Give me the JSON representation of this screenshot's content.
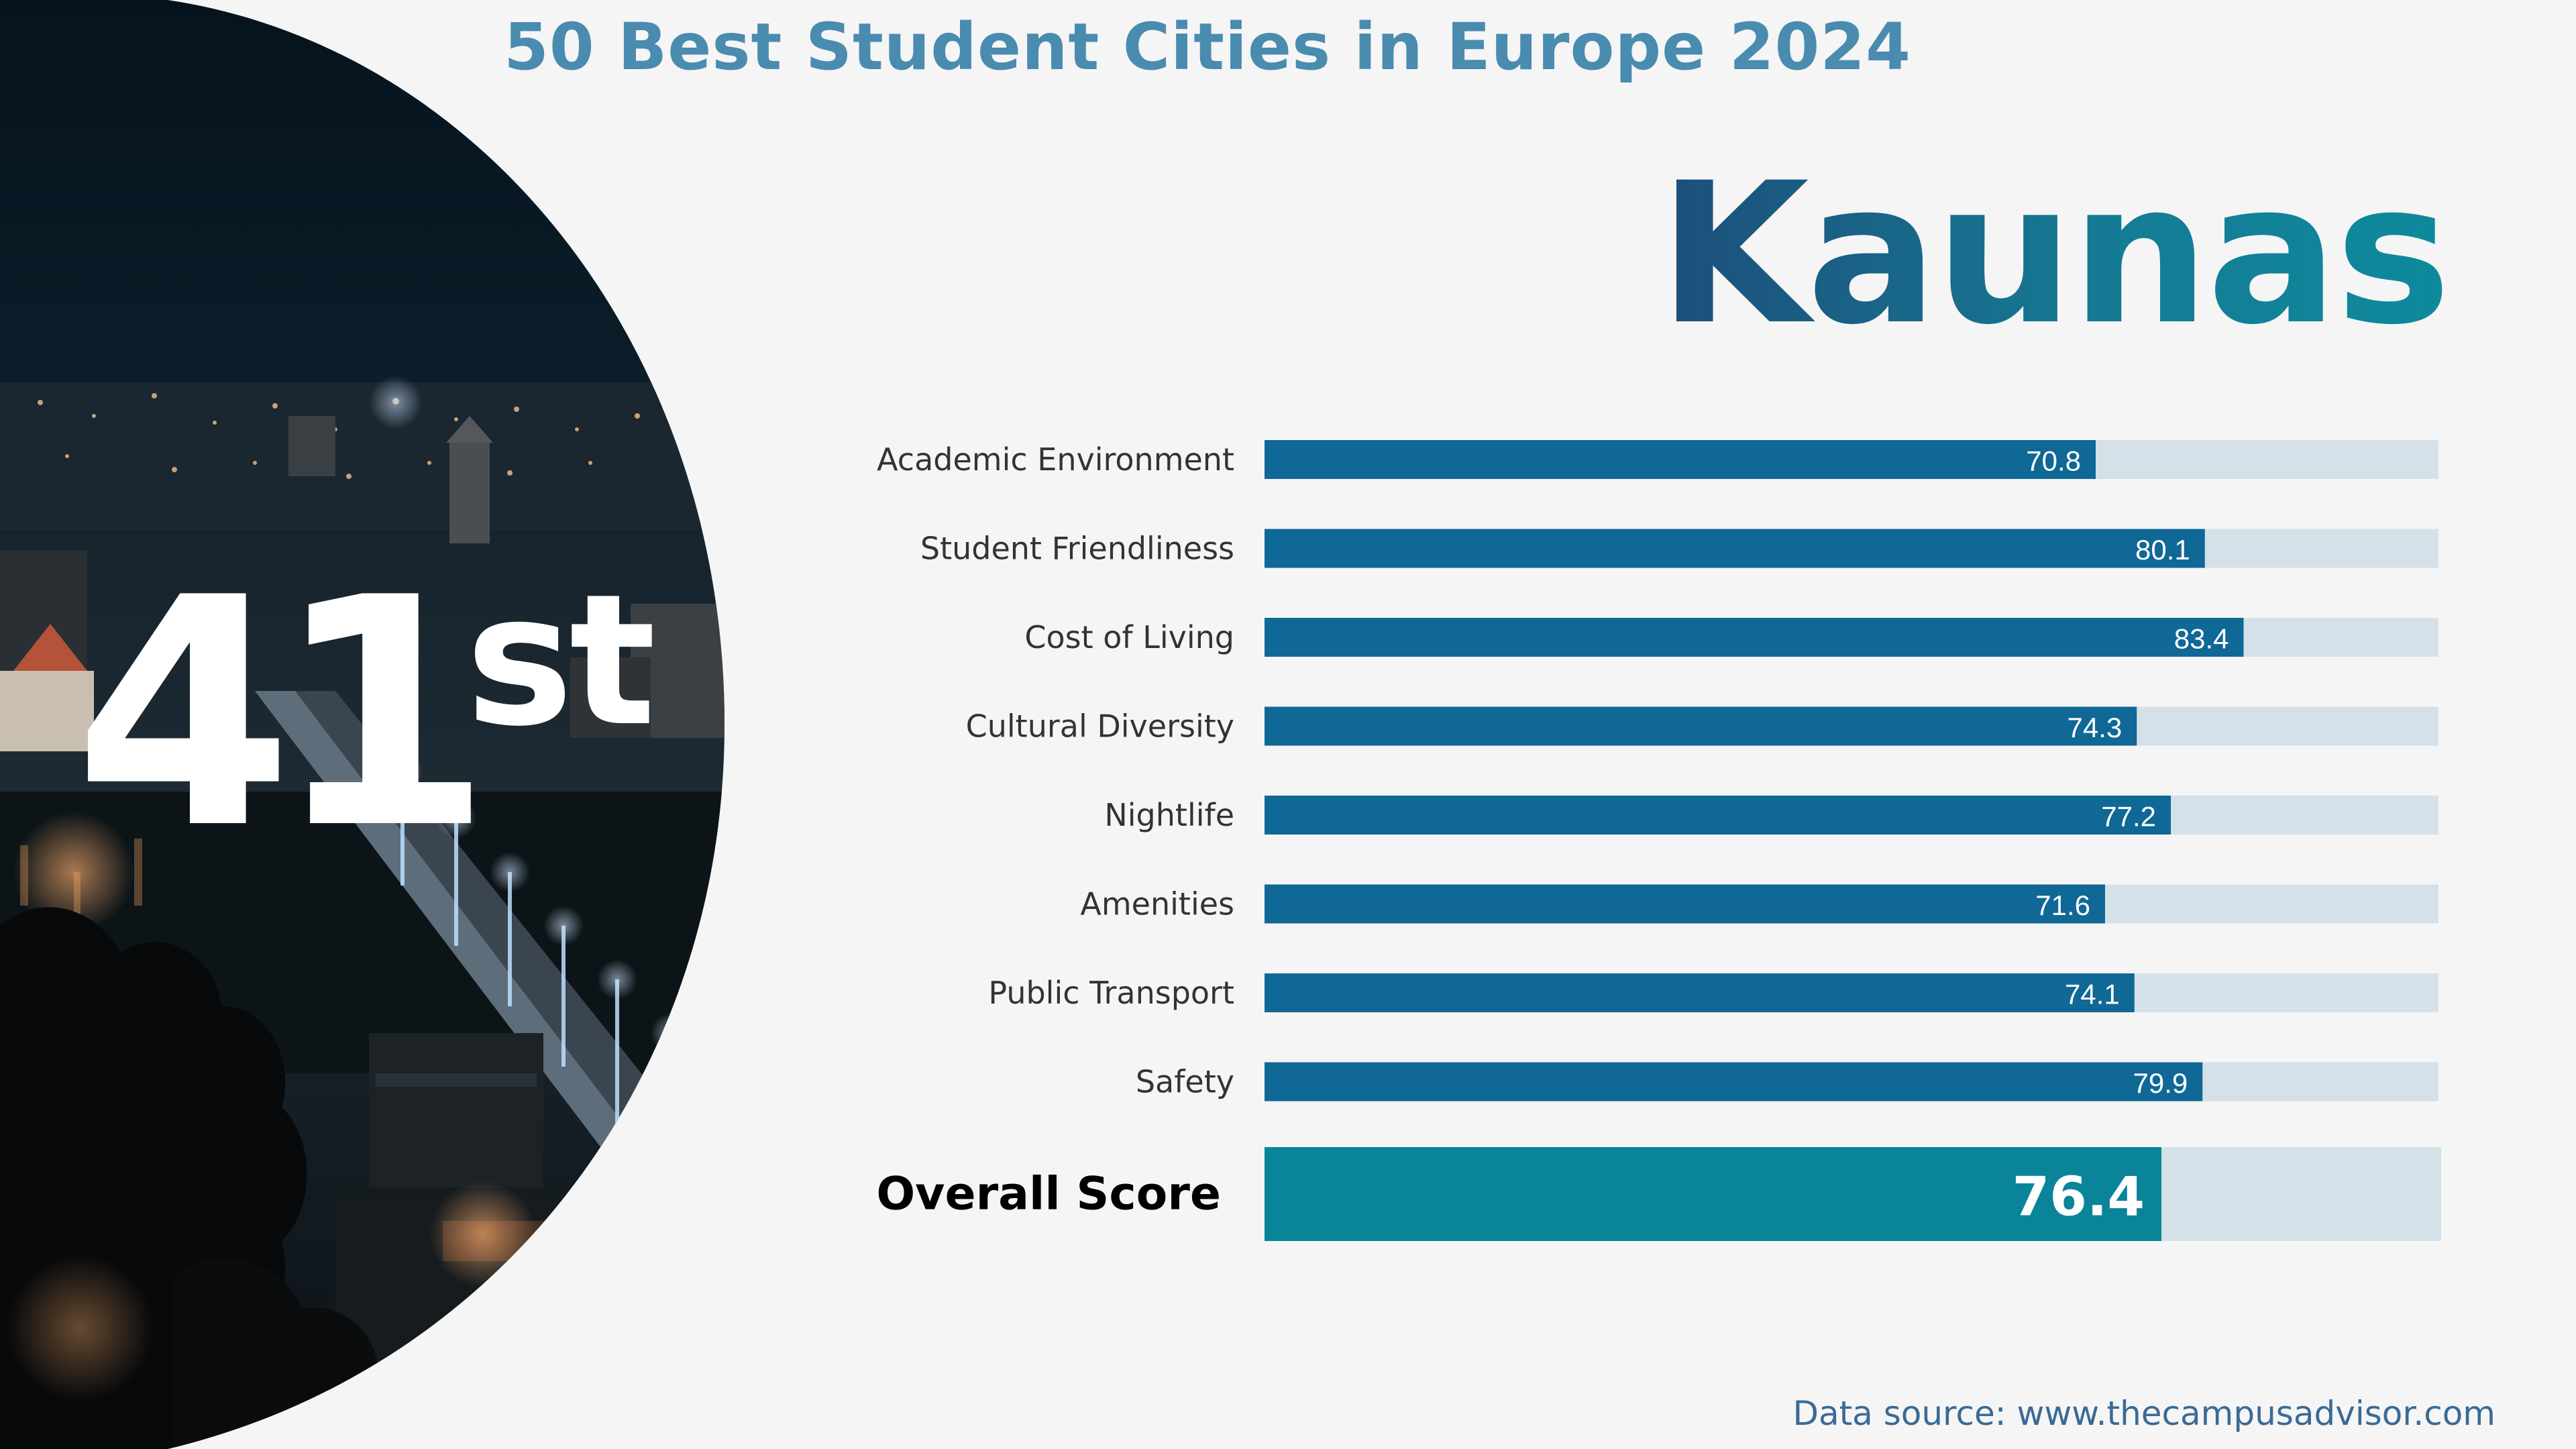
{
  "header": {
    "title": "50 Best Student Cities in Europe 2024"
  },
  "city": {
    "name": "Kaunas",
    "rank_number": "41",
    "rank_suffix": "st"
  },
  "chart_data": {
    "type": "bar",
    "orientation": "horizontal",
    "categories": [
      "Academic Environment",
      "Student Friendliness",
      "Cost of Living",
      "Cultural Diversity",
      "Nightlife",
      "Amenities",
      "Public Transport",
      "Safety"
    ],
    "values": [
      70.8,
      80.1,
      83.4,
      74.3,
      77.2,
      71.6,
      74.1,
      79.9
    ],
    "value_labels": [
      "70.8",
      "80.1",
      "83.4",
      "74.3",
      "77.2",
      "71.6",
      "74.1",
      "79.9"
    ],
    "overall": {
      "label": "Overall Score",
      "value": 76.4,
      "value_label": "76.4"
    },
    "xlim": [
      0,
      100
    ],
    "grid": false,
    "legend": "none",
    "colors": {
      "bar": "#0f6896",
      "overall_bar": "#0a8499",
      "track": "#d5e1e8",
      "label": "#333333",
      "overall_label": "#000000"
    }
  },
  "footer": {
    "source": "Data source: www.thecampusadvisor.com"
  }
}
